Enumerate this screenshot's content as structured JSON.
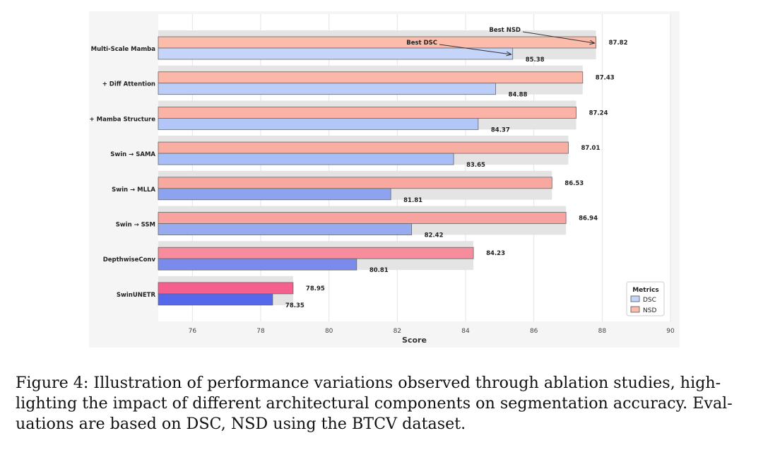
{
  "chart_data": {
    "type": "bar",
    "orientation": "horizontal",
    "categories": [
      "+ Multi-Scale Mamba",
      "+ Diff Attention",
      "+ Mamba Structure",
      "Swin → SAMA",
      "Swin → MLLA",
      "Swin → SSM",
      "DepthwiseConv",
      "SwinUNETR"
    ],
    "series": [
      {
        "name": "NSD",
        "values": [
          87.82,
          87.43,
          87.24,
          87.01,
          86.53,
          86.94,
          84.23,
          78.95
        ],
        "labels": [
          "87.82",
          "87.43",
          "87.24",
          "87.01",
          "86.53",
          "86.94",
          "84.23",
          "78.95"
        ],
        "colors": [
          "#fbbcab",
          "#fbb7a8",
          "#fab3a6",
          "#f9aea3",
          "#f9a8a1",
          "#f8a39f",
          "#f78c9c",
          "#f5608f"
        ]
      },
      {
        "name": "DSC",
        "values": [
          85.38,
          84.88,
          84.37,
          83.65,
          81.81,
          82.42,
          80.81,
          78.35
        ],
        "labels": [
          "85.38",
          "84.88",
          "84.37",
          "83.65",
          "81.81",
          "82.42",
          "80.81",
          "78.35"
        ],
        "colors": [
          "#c5d5fa",
          "#bccef8",
          "#b2c6f7",
          "#a8bef6",
          "#8ea3ef",
          "#97abf1",
          "#7b8bec",
          "#5568ec"
        ]
      }
    ],
    "xlabel": "Score",
    "xlim": [
      75,
      90
    ],
    "xticks": [
      76,
      78,
      80,
      82,
      84,
      86,
      88,
      90
    ],
    "xtick_labels": [
      "76",
      "78",
      "80",
      "82",
      "84",
      "86",
      "88",
      "90"
    ],
    "grid": true,
    "legend": {
      "title": "Metrics",
      "position": "bottom-right",
      "entries": [
        {
          "label": "DSC",
          "color": "#c5d5fa"
        },
        {
          "label": "NSD",
          "color": "#fbbcab"
        }
      ]
    },
    "annotations": [
      {
        "text": "Best NSD",
        "target_series": "NSD",
        "target_category": "+ Multi-Scale Mamba",
        "target_value": 87.82
      },
      {
        "text": "Best DSC",
        "target_series": "DSC",
        "target_category": "+ Multi-Scale Mamba",
        "target_value": 85.38
      }
    ]
  },
  "caption": {
    "lines": [
      "Figure 4: Illustration of performance variations observed through ablation studies, high-",
      "lighting the impact of different architectural components on segmentation accuracy. Eval-",
      "uations are based on DSC, NSD using the BTCV dataset."
    ]
  }
}
